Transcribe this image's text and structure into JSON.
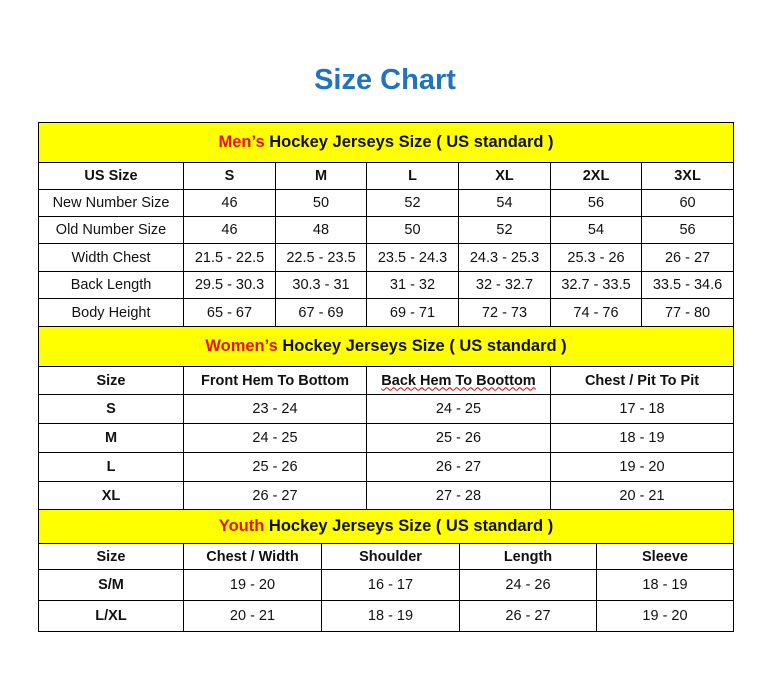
{
  "title": "Size Chart",
  "colors": {
    "title": "#1f73c0",
    "band": "#ffff00",
    "accent": "#e81010"
  },
  "mens": {
    "accent": "Men’s",
    "heading": " Hockey Jerseys Size ( US standard )",
    "header": [
      "US Size",
      "S",
      "M",
      "L",
      "XL",
      "2XL",
      "3XL"
    ],
    "rows": [
      [
        "New Number Size",
        "46",
        "50",
        "52",
        "54",
        "56",
        "60"
      ],
      [
        "Old Number Size",
        "46",
        "48",
        "50",
        "52",
        "54",
        "56"
      ],
      [
        "Width Chest",
        "21.5 - 22.5",
        "22.5 - 23.5",
        "23.5 - 24.3",
        "24.3 - 25.3",
        "25.3 - 26",
        "26 - 27"
      ],
      [
        "Back Length",
        "29.5 - 30.3",
        "30.3 - 31",
        "31 - 32",
        "32 - 32.7",
        "32.7 - 33.5",
        "33.5 - 34.6"
      ],
      [
        "Body Height",
        "65 - 67",
        "67 - 69",
        "69 - 71",
        "72 - 73",
        "74 - 76",
        "77 - 80"
      ]
    ]
  },
  "womens": {
    "accent": "Women’s",
    "heading": " Hockey Jerseys Size ( US standard )",
    "header": [
      "Size",
      "Front Hem To Bottom",
      "Back Hem To Boottom",
      "Chest / Pit To Pit"
    ],
    "rows": [
      [
        "S",
        "23 - 24",
        "24 - 25",
        "17 - 18"
      ],
      [
        "M",
        "24 - 25",
        "25 - 26",
        "18 - 19"
      ],
      [
        "L",
        "25 - 26",
        "26 - 27",
        "19 - 20"
      ],
      [
        "XL",
        "26 - 27",
        "27 - 28",
        "20 - 21"
      ]
    ]
  },
  "youth": {
    "accent": "Youth",
    "heading": " Hockey Jerseys Size ( US standard )",
    "header": [
      "Size",
      "Chest / Width",
      "Shoulder",
      "Length",
      "Sleeve"
    ],
    "rows": [
      [
        "S/M",
        "19 - 20",
        "16 - 17",
        "24 - 26",
        "18 - 19"
      ],
      [
        "L/XL",
        "20 - 21",
        "18 - 19",
        "26 - 27",
        "19 - 20"
      ]
    ]
  }
}
